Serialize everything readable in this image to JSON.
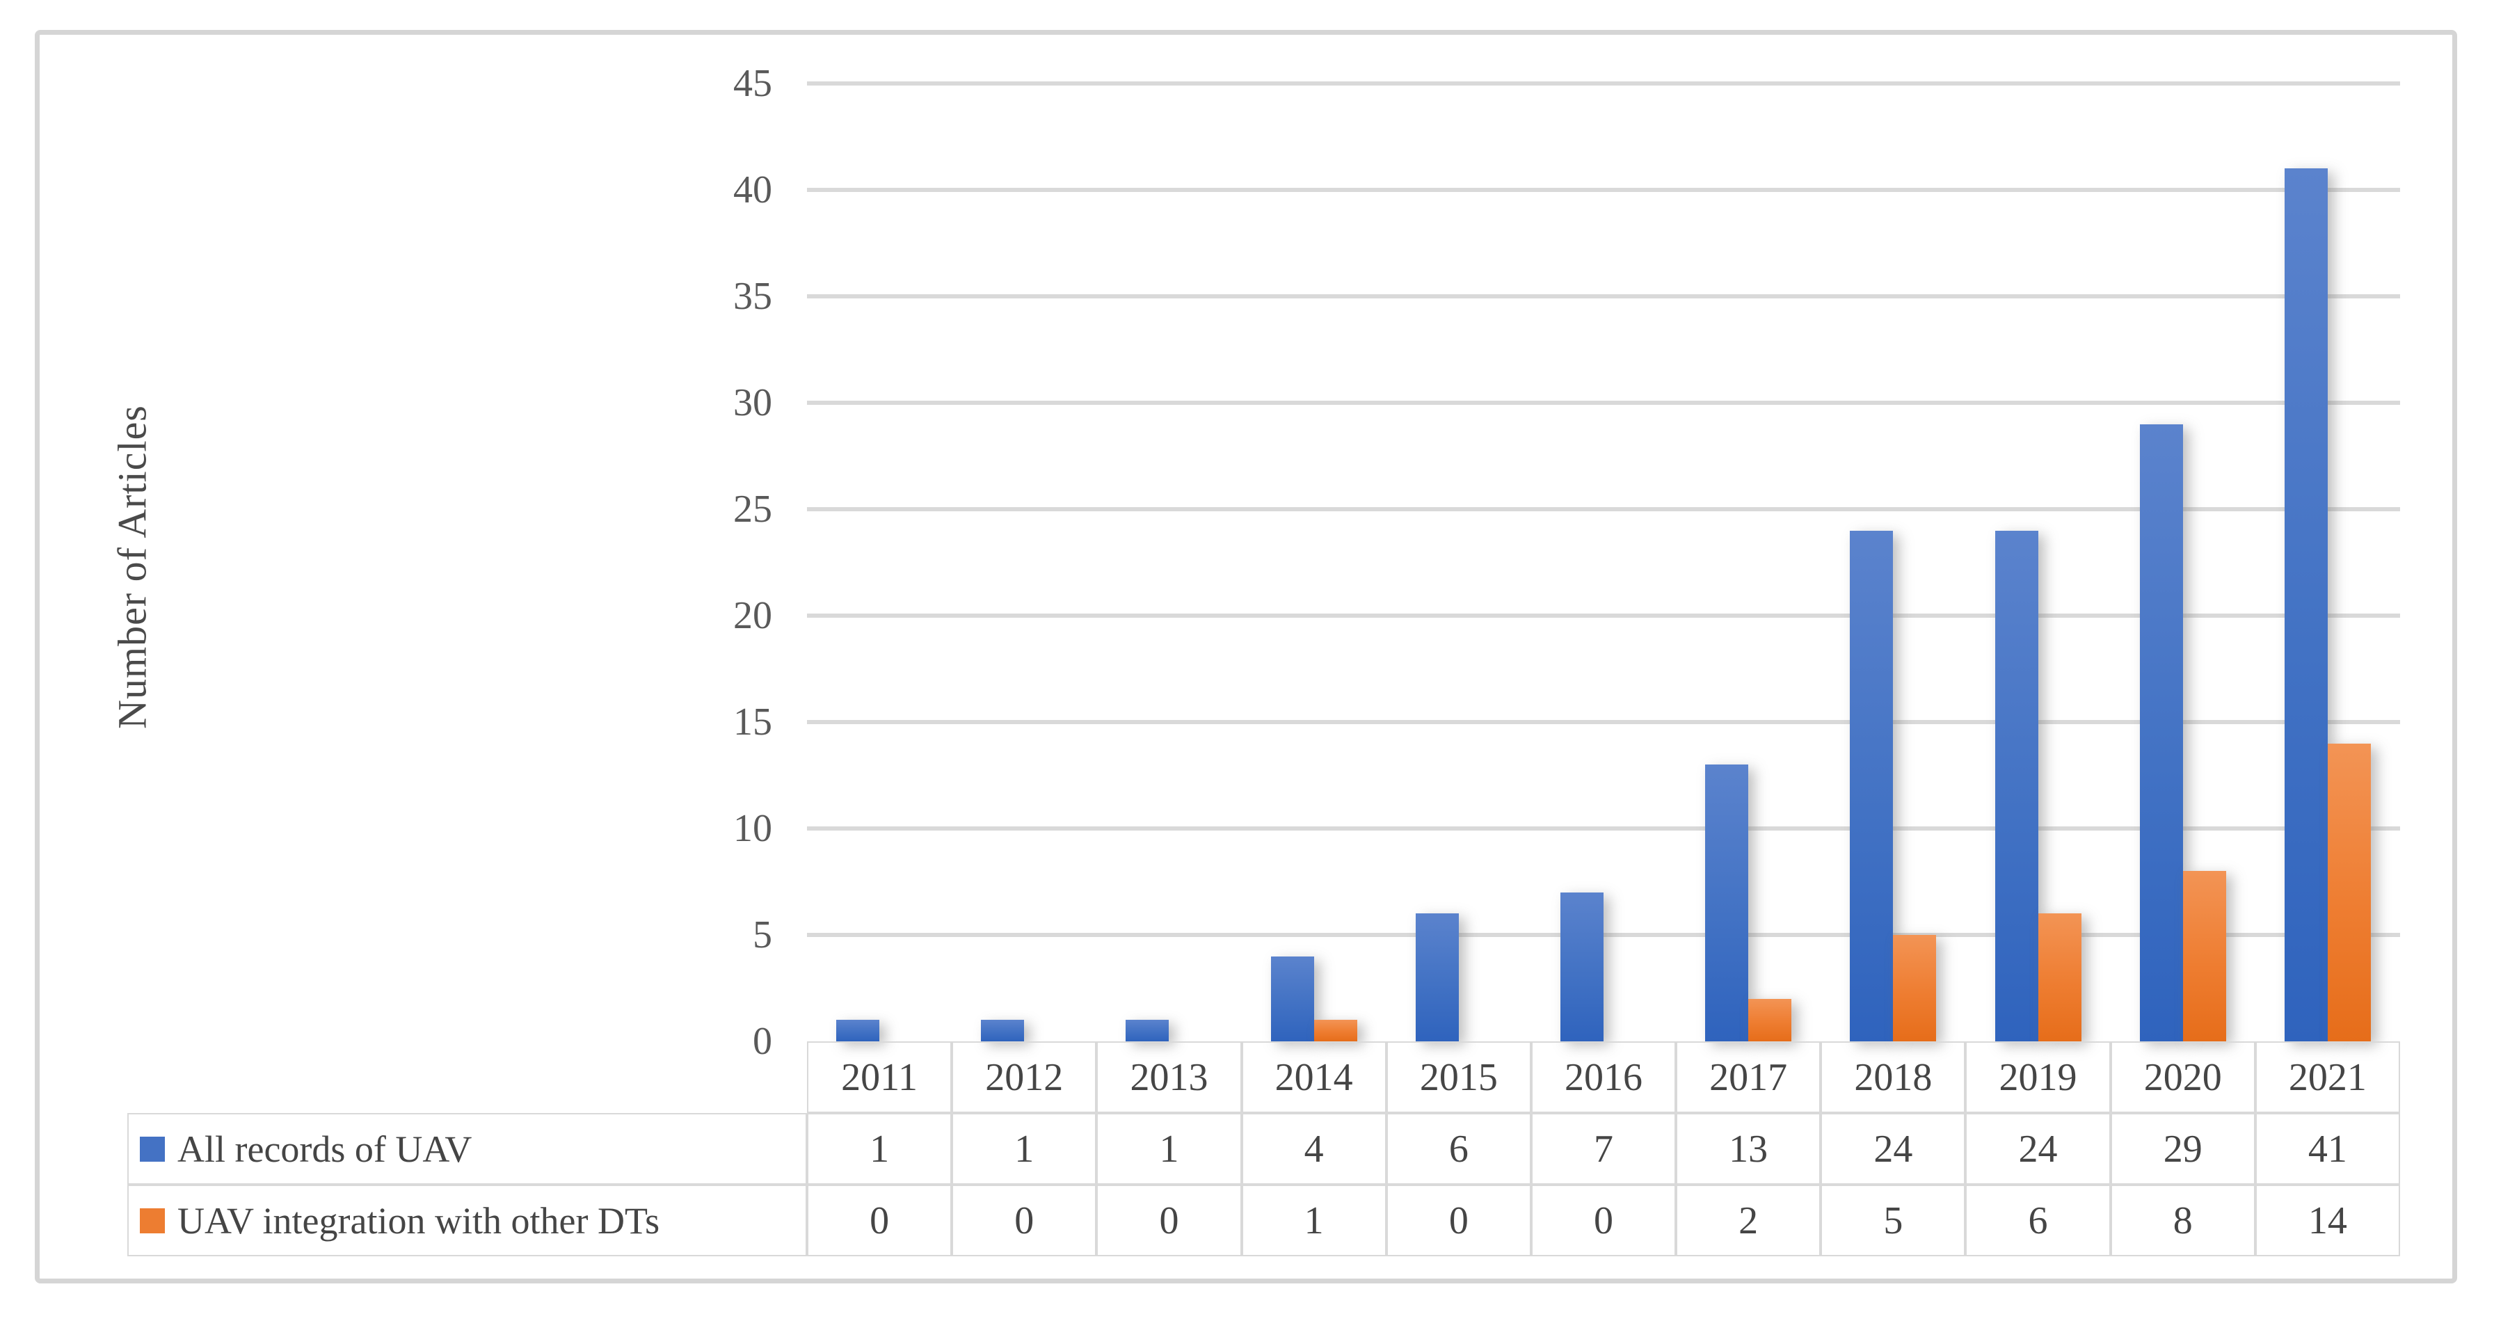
{
  "figure": {
    "y_axis_title": "Number of Articles",
    "yticks": [
      "0",
      "5",
      "10",
      "15",
      "20",
      "25",
      "30",
      "35",
      "40",
      "45"
    ]
  },
  "chart_data": {
    "type": "bar",
    "title": "",
    "xlabel": "",
    "ylabel": "Number of Articles",
    "categories": [
      "2011",
      "2012",
      "2013",
      "2014",
      "2015",
      "2016",
      "2017",
      "2018",
      "2019",
      "2020",
      "2021"
    ],
    "series": [
      {
        "name": "All records of UAV",
        "color": "#4472C4",
        "values": [
          1,
          1,
          1,
          4,
          6,
          7,
          13,
          24,
          24,
          29,
          41
        ]
      },
      {
        "name": "UAV integration with other DTs",
        "color": "#ED7D31",
        "values": [
          0,
          0,
          0,
          1,
          0,
          0,
          2,
          5,
          6,
          8,
          14
        ]
      }
    ],
    "ylim": [
      0,
      45
    ],
    "ytick_step": 5,
    "grid": true,
    "legend_position": "data-table-left",
    "data_table_shown": true
  },
  "colors": {
    "series1_fill": "#4472C4",
    "series2_fill": "#ED7D31",
    "gridline": "#D9D9D9",
    "table_border": "#D9D9D9",
    "frame_border": "#D5D5D5",
    "text": "#454545",
    "tick_text": "#595959",
    "background": "#FFFFFF"
  }
}
